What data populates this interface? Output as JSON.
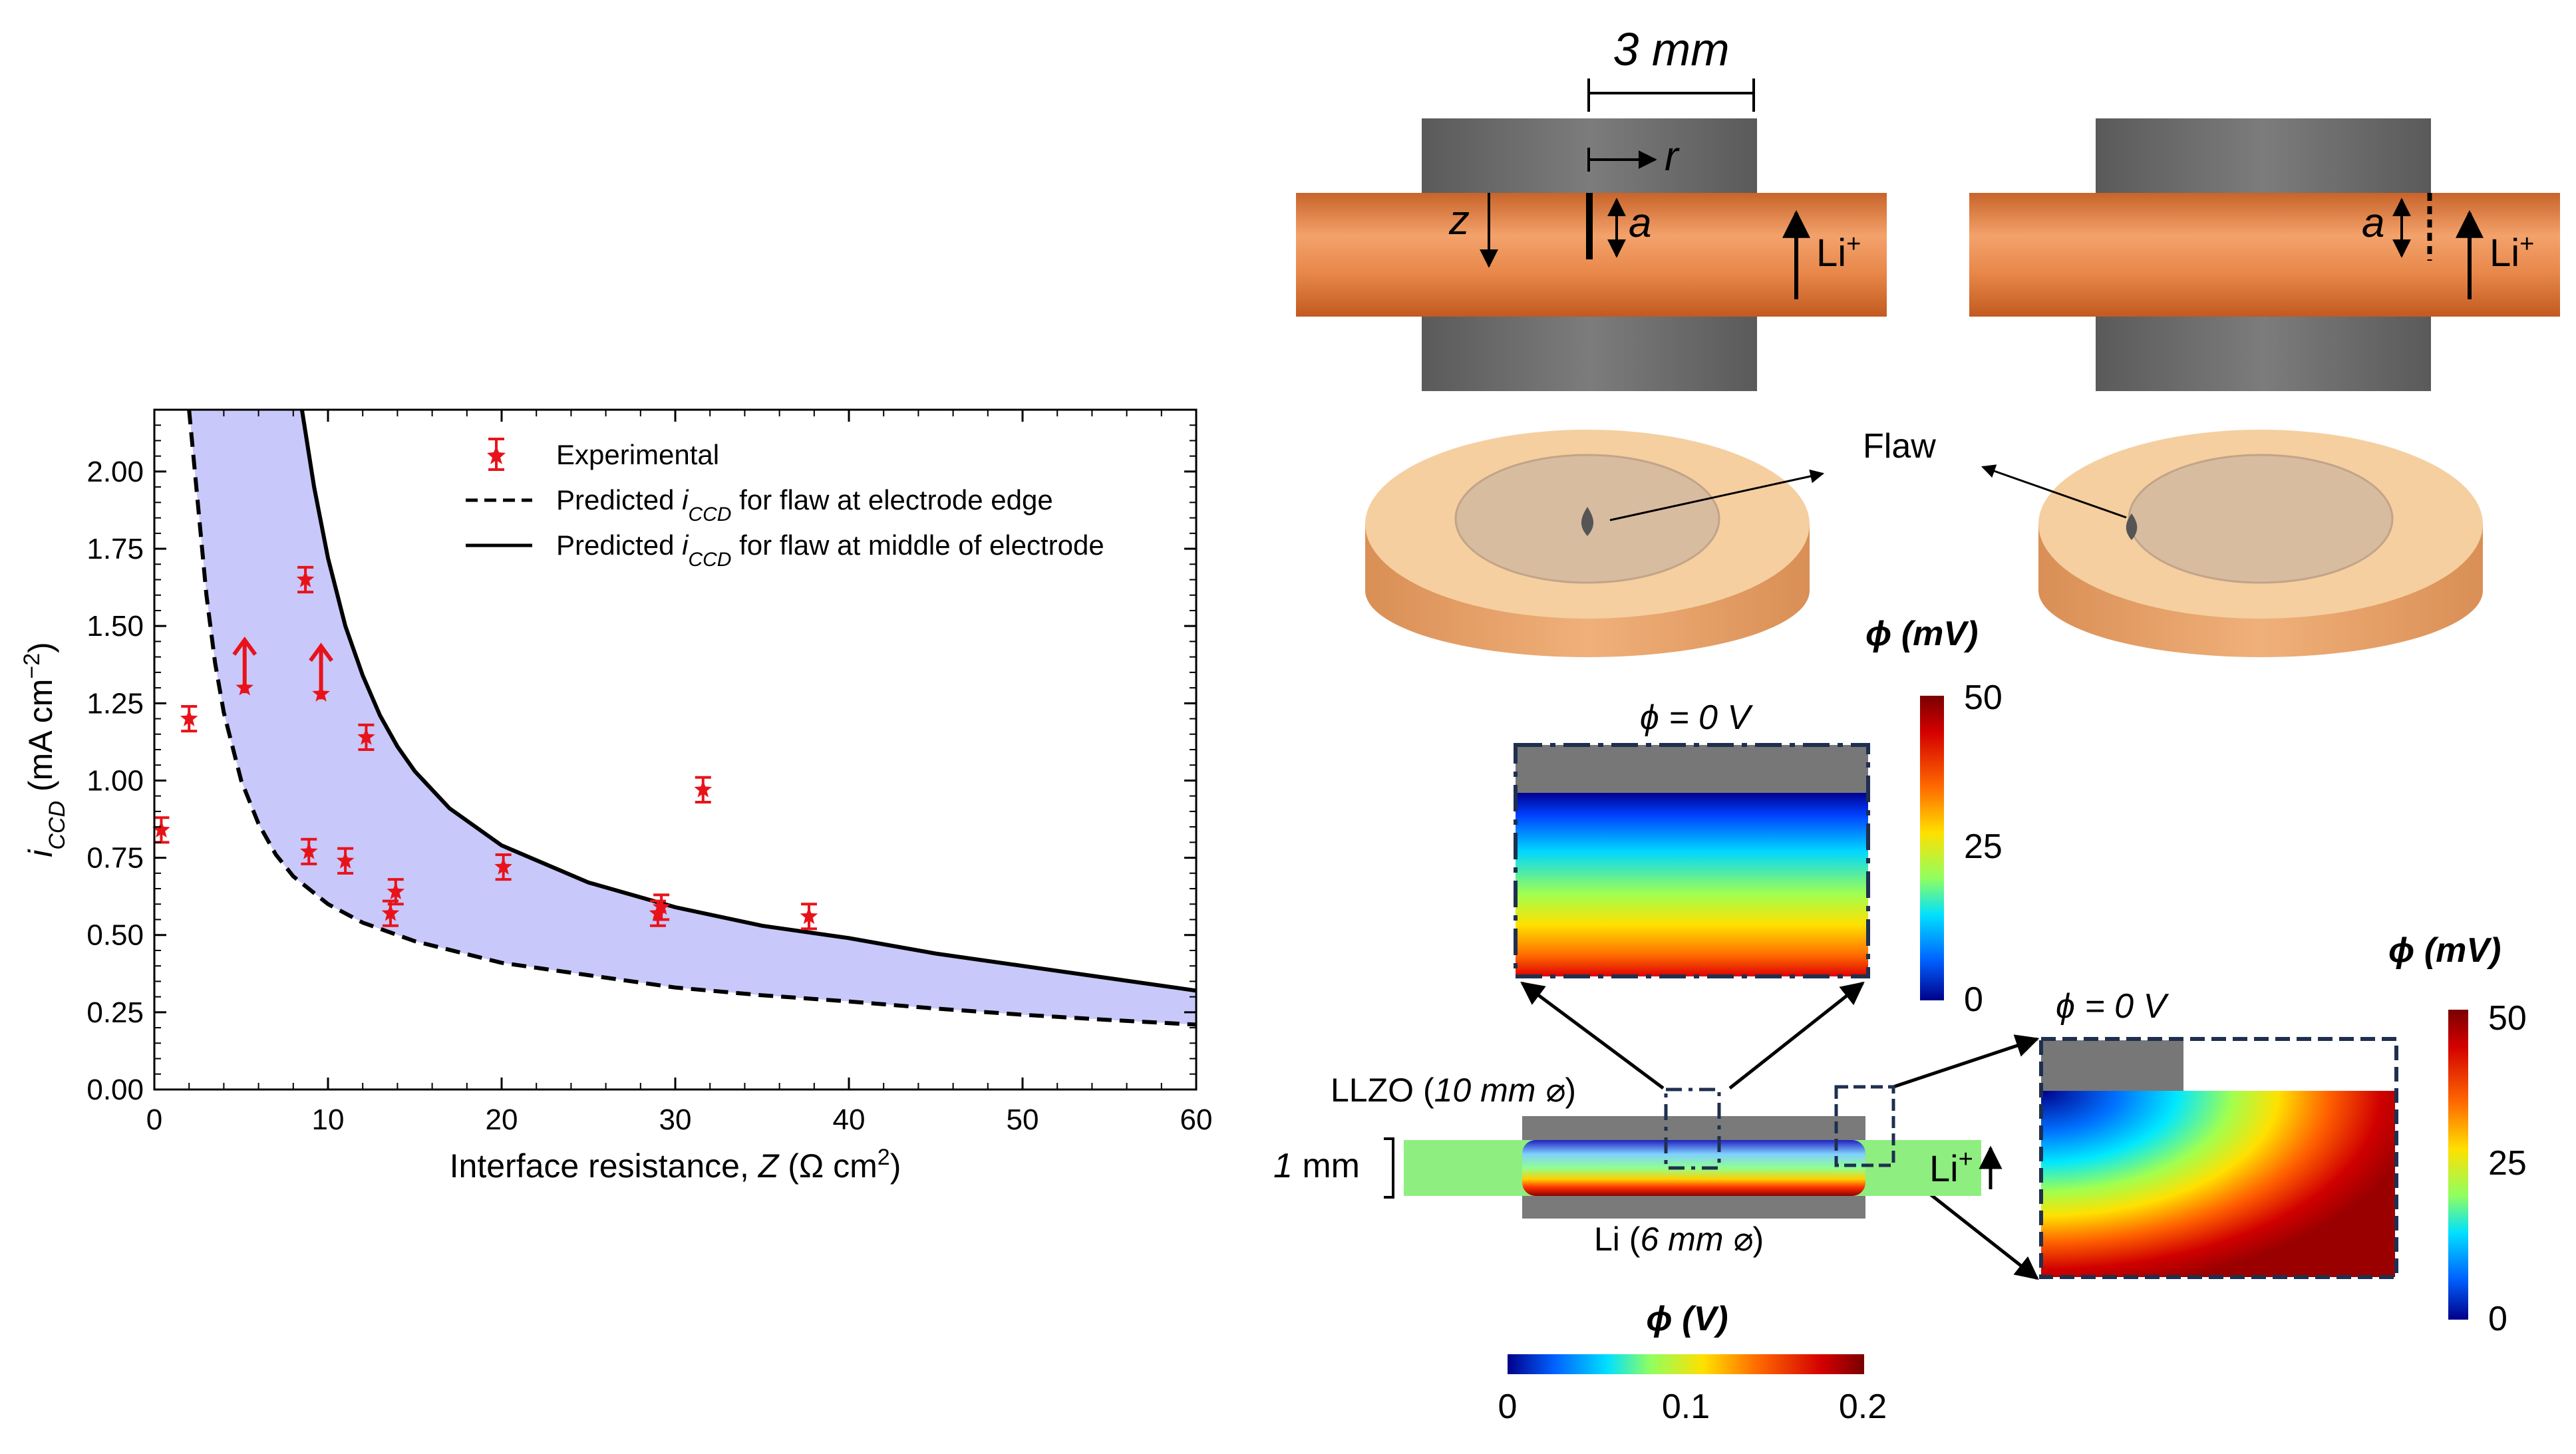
{
  "chart_data": {
    "type": "scatter",
    "xlabel_main": "Interface resistance, ",
    "xlabel_sym": "Z",
    "xlabel_unit": " (Ω cm",
    "xlabel_sup": "2",
    "xlabel_close": ")",
    "ylabel_sym": "i",
    "ylabel_sub": "CCD",
    "ylabel_unit": " (mA cm",
    "ylabel_sup": "−2",
    "ylabel_close": ")",
    "xlim": [
      0,
      60
    ],
    "ylim": [
      0,
      2.2
    ],
    "xticks": [
      "0",
      "10",
      "20",
      "30",
      "40",
      "50",
      "60"
    ],
    "yticks": [
      "0.00",
      "0.25",
      "0.50",
      "0.75",
      "1.00",
      "1.25",
      "1.50",
      "1.75",
      "2.00"
    ],
    "legend": {
      "placement": "top-right",
      "experimental": "Experimental",
      "edge_prefix": "Predicted ",
      "edge_suffix": " for flaw at electrode edge",
      "middle_prefix": "Predicted ",
      "middle_suffix": " for flaw at middle of electrode",
      "sym": "i",
      "sub": "CCD"
    },
    "experimental": [
      {
        "x": 0.4,
        "y": 0.84,
        "err": 0.04
      },
      {
        "x": 2.0,
        "y": 1.2,
        "err": 0.04
      },
      {
        "x": 5.2,
        "y": 1.3,
        "err": 0.0,
        "lower_bound": true
      },
      {
        "x": 8.7,
        "y": 1.65,
        "err": 0.04
      },
      {
        "x": 8.9,
        "y": 0.77,
        "err": 0.04
      },
      {
        "x": 9.6,
        "y": 1.28,
        "err": 0.0,
        "lower_bound": true
      },
      {
        "x": 11.0,
        "y": 0.74,
        "err": 0.04
      },
      {
        "x": 12.2,
        "y": 1.14,
        "err": 0.04
      },
      {
        "x": 13.6,
        "y": 0.57,
        "err": 0.04
      },
      {
        "x": 13.9,
        "y": 0.64,
        "err": 0.04
      },
      {
        "x": 20.1,
        "y": 0.72,
        "err": 0.04
      },
      {
        "x": 29.0,
        "y": 0.57,
        "err": 0.04
      },
      {
        "x": 29.2,
        "y": 0.59,
        "err": 0.04
      },
      {
        "x": 31.6,
        "y": 0.97,
        "err": 0.04
      },
      {
        "x": 37.7,
        "y": 0.56,
        "err": 0.04
      }
    ],
    "predicted_edge": [
      [
        2.0,
        2.2
      ],
      [
        2.5,
        1.9
      ],
      [
        3,
        1.6
      ],
      [
        3.5,
        1.38
      ],
      [
        4,
        1.22
      ],
      [
        5,
        1.0
      ],
      [
        6,
        0.86
      ],
      [
        7,
        0.76
      ],
      [
        8,
        0.69
      ],
      [
        10,
        0.6
      ],
      [
        12,
        0.54
      ],
      [
        15,
        0.48
      ],
      [
        20,
        0.41
      ],
      [
        25,
        0.37
      ],
      [
        30,
        0.33
      ],
      [
        35,
        0.305
      ],
      [
        40,
        0.285
      ],
      [
        45,
        0.262
      ],
      [
        50,
        0.242
      ],
      [
        55,
        0.225
      ],
      [
        60,
        0.21
      ]
    ],
    "predicted_middle": [
      [
        8.5,
        2.2
      ],
      [
        9.2,
        1.95
      ],
      [
        10,
        1.72
      ],
      [
        11,
        1.5
      ],
      [
        12,
        1.34
      ],
      [
        13,
        1.21
      ],
      [
        14,
        1.11
      ],
      [
        15,
        1.03
      ],
      [
        17,
        0.91
      ],
      [
        20,
        0.79
      ],
      [
        25,
        0.67
      ],
      [
        30,
        0.59
      ],
      [
        35,
        0.53
      ],
      [
        40,
        0.49
      ],
      [
        45,
        0.44
      ],
      [
        50,
        0.4
      ],
      [
        55,
        0.36
      ],
      [
        60,
        0.32
      ]
    ],
    "band_color": "#c8c8fa",
    "marker_color": "#e8131a"
  },
  "diagram": {
    "dim_label": "3 mm",
    "r_label": "r",
    "z_label": "z",
    "a_label": "a",
    "li_label": "Li",
    "li_sup": "+",
    "flaw_label": "Flaw",
    "phi_mv_top": "ϕ (mV)",
    "phi_zero_top": "ϕ = 0 V",
    "phi_zero_right": "ϕ = 0 V",
    "phi_mv_right": "ϕ (mV)",
    "llzo_label_a": "LLZO (",
    "llzo_label_b": "10 mm ⌀",
    "llzo_label_c": ")",
    "li_bottom_a": "Li (",
    "li_bottom_b": "6 mm ⌀",
    "li_bottom_c": ")",
    "thickness_a": "1",
    "thickness_b": " mm",
    "phi_v": "ϕ (V)",
    "cbar_top_ticks": [
      "50",
      "25",
      "0"
    ],
    "cbar_right_ticks": [
      "50",
      "25",
      "0"
    ],
    "cbar_bottom_ticks": [
      "0",
      "0.1",
      "0.2"
    ],
    "colors": {
      "copper": "#e07a35",
      "steel": "#6e6e6e",
      "disk": "#f2c18f",
      "frame": "#1f2f4f"
    }
  }
}
